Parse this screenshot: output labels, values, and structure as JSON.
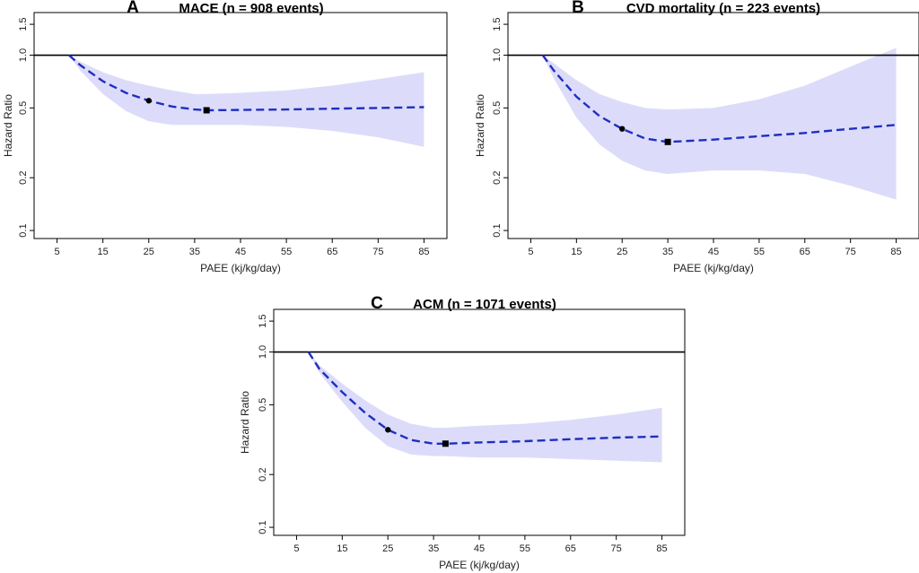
{
  "style": {
    "band_color": "#dcdcfa",
    "line_color": "#1f2fbf",
    "ref_line_color": "#000000",
    "marker_color": "#000000"
  },
  "chart_data": [
    {
      "type": "line",
      "panel_letter": "A",
      "title": "MACE (n = 908 events)",
      "xlabel": "PAEE (kj/kg/day)",
      "ylabel": "Hazard Ratio",
      "y_scale": "log",
      "xlim": [
        0,
        90
      ],
      "ylim": [
        0.09,
        1.75
      ],
      "x_ticks": [
        5,
        15,
        25,
        35,
        45,
        55,
        65,
        75,
        85
      ],
      "y_ticks": [
        0.1,
        0.2,
        0.5,
        1.0,
        1.5
      ],
      "y_tick_labels": [
        "0.1",
        "0.2",
        "0.5",
        "1.0",
        "1.5"
      ],
      "reference_line": 1.0,
      "series": [
        {
          "x": [
            7.6,
            10,
            15,
            20,
            25,
            30,
            35,
            37.6,
            45,
            55,
            65,
            75,
            85
          ],
          "y": [
            1.0,
            0.88,
            0.71,
            0.61,
            0.55,
            0.51,
            0.49,
            0.485,
            0.487,
            0.49,
            0.495,
            0.5,
            0.505
          ],
          "ci_lower": [
            1.0,
            0.82,
            0.6,
            0.48,
            0.42,
            0.4,
            0.4,
            0.4,
            0.4,
            0.39,
            0.37,
            0.34,
            0.3
          ],
          "ci_upper": [
            1.0,
            0.92,
            0.8,
            0.72,
            0.67,
            0.63,
            0.6,
            0.6,
            0.61,
            0.63,
            0.67,
            0.73,
            0.8
          ]
        }
      ],
      "markers": [
        {
          "x": 25,
          "y": 0.55,
          "shape": "circle"
        },
        {
          "x": 37.6,
          "y": 0.485,
          "shape": "square"
        }
      ]
    },
    {
      "type": "line",
      "panel_letter": "B",
      "title": "CVD mortality (n = 223 events)",
      "xlabel": "PAEE (kj/kg/day)",
      "ylabel": "Hazard Ratio",
      "y_scale": "log",
      "xlim": [
        0,
        90
      ],
      "ylim": [
        0.09,
        1.75
      ],
      "x_ticks": [
        5,
        15,
        25,
        35,
        45,
        55,
        65,
        75,
        85
      ],
      "y_ticks": [
        0.1,
        0.2,
        0.5,
        1.0,
        1.5
      ],
      "y_tick_labels": [
        "0.1",
        "0.2",
        "0.5",
        "1.0",
        "1.5"
      ],
      "reference_line": 1.0,
      "series": [
        {
          "x": [
            7.6,
            10,
            15,
            20,
            25,
            30,
            35,
            45,
            55,
            65,
            75,
            85
          ],
          "y": [
            1.0,
            0.82,
            0.58,
            0.45,
            0.38,
            0.335,
            0.32,
            0.33,
            0.345,
            0.36,
            0.38,
            0.4
          ],
          "ci_lower": [
            1.0,
            0.74,
            0.44,
            0.31,
            0.25,
            0.22,
            0.21,
            0.22,
            0.22,
            0.21,
            0.18,
            0.15
          ],
          "ci_upper": [
            1.0,
            0.9,
            0.72,
            0.6,
            0.54,
            0.5,
            0.49,
            0.5,
            0.56,
            0.67,
            0.86,
            1.1
          ]
        }
      ],
      "markers": [
        {
          "x": 25,
          "y": 0.38,
          "shape": "circle"
        },
        {
          "x": 35,
          "y": 0.32,
          "shape": "square"
        }
      ]
    },
    {
      "type": "line",
      "panel_letter": "C",
      "title": "ACM (n = 1071 events)",
      "xlabel": "PAEE (kj/kg/day)",
      "ylabel": "Hazard Ratio",
      "y_scale": "log",
      "xlim": [
        0,
        90
      ],
      "ylim": [
        0.09,
        1.75
      ],
      "x_ticks": [
        5,
        15,
        25,
        35,
        45,
        55,
        65,
        75,
        85
      ],
      "y_ticks": [
        0.1,
        0.2,
        0.5,
        1.0,
        1.5
      ],
      "y_tick_labels": [
        "0.1",
        "0.2",
        "0.5",
        "1.0",
        "1.5"
      ],
      "reference_line": 1.0,
      "series": [
        {
          "x": [
            7.6,
            10,
            15,
            20,
            25,
            30,
            35,
            37.6,
            45,
            55,
            65,
            75,
            85
          ],
          "y": [
            1.0,
            0.8,
            0.59,
            0.45,
            0.36,
            0.315,
            0.3,
            0.3,
            0.305,
            0.31,
            0.318,
            0.325,
            0.33
          ],
          "ci_lower": [
            1.0,
            0.76,
            0.52,
            0.37,
            0.29,
            0.26,
            0.255,
            0.255,
            0.25,
            0.25,
            0.245,
            0.24,
            0.235
          ],
          "ci_upper": [
            1.0,
            0.84,
            0.66,
            0.53,
            0.44,
            0.39,
            0.37,
            0.37,
            0.38,
            0.39,
            0.41,
            0.44,
            0.48
          ]
        }
      ],
      "markers": [
        {
          "x": 25,
          "y": 0.36,
          "shape": "circle"
        },
        {
          "x": 37.6,
          "y": 0.3,
          "shape": "square"
        }
      ]
    }
  ]
}
